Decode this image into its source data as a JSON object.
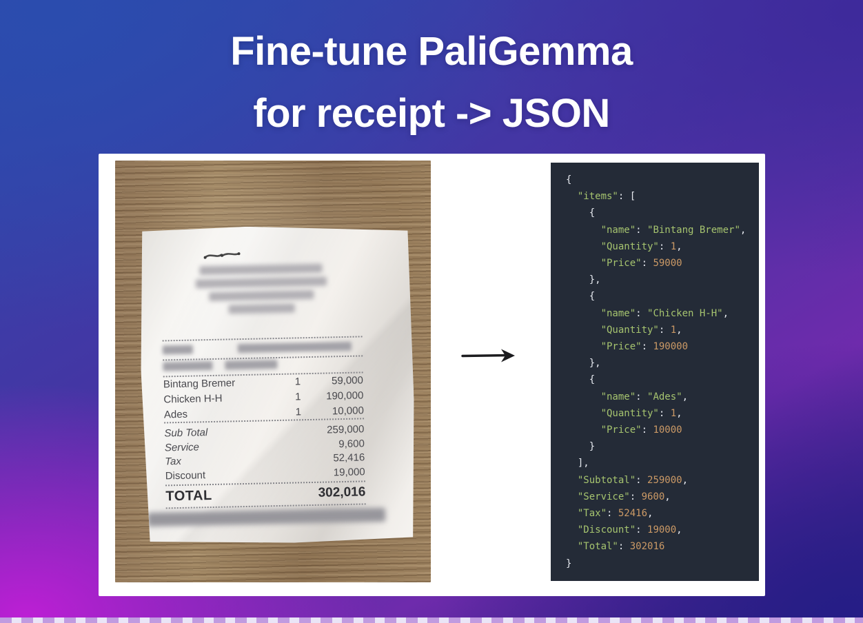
{
  "title": {
    "line1": "Fine-tune PaliGemma",
    "line2": "for receipt -> JSON"
  },
  "colors": {
    "background_top_left": "#2b4cae",
    "background_top_right": "#3e2a9b",
    "background_bottom_left": "#bc1fd4",
    "background_bottom_right": "#251d86",
    "card": "#ffffff",
    "code_background": "#242b37",
    "code_key_string": "#a6c46f",
    "code_number": "#cc9a66",
    "code_punctuation": "#e7eaf0"
  },
  "receipt": {
    "redacted_header_bar_widths": [
      178,
      190,
      152,
      96
    ],
    "redacted_info_row_a_widths": [
      44,
      165
    ],
    "redacted_info_row_b_widths": [
      72,
      76
    ],
    "items": [
      {
        "name": "Bintang Bremer",
        "qty": "1",
        "price": "59,000"
      },
      {
        "name": "Chicken H-H",
        "qty": "1",
        "price": "190,000"
      },
      {
        "name": "Ades",
        "qty": "1",
        "price": "10,000"
      }
    ],
    "summary": [
      {
        "label": "Sub Total",
        "value": "259,000",
        "italic": true
      },
      {
        "label": "Service",
        "value": "9,600",
        "italic": true
      },
      {
        "label": "Tax",
        "value": "52,416",
        "italic": true
      },
      {
        "label": "Discount",
        "value": "19,000",
        "italic": false
      }
    ],
    "total_label": "TOTAL",
    "total_value": "302,016"
  },
  "json_panel": {
    "lines": [
      [
        [
          "p",
          "{"
        ]
      ],
      [
        [
          "p",
          "  "
        ],
        [
          "k",
          "\"items\""
        ],
        [
          "p",
          ": ["
        ]
      ],
      [
        [
          "p",
          "    {"
        ]
      ],
      [
        [
          "p",
          "      "
        ],
        [
          "k",
          "\"name\""
        ],
        [
          "p",
          ": "
        ],
        [
          "s",
          "\"Bintang Bremer\""
        ],
        [
          "p",
          ","
        ]
      ],
      [
        [
          "p",
          "      "
        ],
        [
          "k",
          "\"Quantity\""
        ],
        [
          "p",
          ": "
        ],
        [
          "n",
          "1"
        ],
        [
          "p",
          ","
        ]
      ],
      [
        [
          "p",
          "      "
        ],
        [
          "k",
          "\"Price\""
        ],
        [
          "p",
          ": "
        ],
        [
          "n",
          "59000"
        ]
      ],
      [
        [
          "p",
          "    },"
        ]
      ],
      [
        [
          "p",
          "    {"
        ]
      ],
      [
        [
          "p",
          "      "
        ],
        [
          "k",
          "\"name\""
        ],
        [
          "p",
          ": "
        ],
        [
          "s",
          "\"Chicken H-H\""
        ],
        [
          "p",
          ","
        ]
      ],
      [
        [
          "p",
          "      "
        ],
        [
          "k",
          "\"Quantity\""
        ],
        [
          "p",
          ": "
        ],
        [
          "n",
          "1"
        ],
        [
          "p",
          ","
        ]
      ],
      [
        [
          "p",
          "      "
        ],
        [
          "k",
          "\"Price\""
        ],
        [
          "p",
          ": "
        ],
        [
          "n",
          "190000"
        ]
      ],
      [
        [
          "p",
          "    },"
        ]
      ],
      [
        [
          "p",
          "    {"
        ]
      ],
      [
        [
          "p",
          "      "
        ],
        [
          "k",
          "\"name\""
        ],
        [
          "p",
          ": "
        ],
        [
          "s",
          "\"Ades\""
        ],
        [
          "p",
          ","
        ]
      ],
      [
        [
          "p",
          "      "
        ],
        [
          "k",
          "\"Quantity\""
        ],
        [
          "p",
          ": "
        ],
        [
          "n",
          "1"
        ],
        [
          "p",
          ","
        ]
      ],
      [
        [
          "p",
          "      "
        ],
        [
          "k",
          "\"Price\""
        ],
        [
          "p",
          ": "
        ],
        [
          "n",
          "10000"
        ]
      ],
      [
        [
          "p",
          "    }"
        ]
      ],
      [
        [
          "p",
          "  ],"
        ]
      ],
      [
        [
          "p",
          "  "
        ],
        [
          "k",
          "\"Subtotal\""
        ],
        [
          "p",
          ": "
        ],
        [
          "n",
          "259000"
        ],
        [
          "p",
          ","
        ]
      ],
      [
        [
          "p",
          "  "
        ],
        [
          "k",
          "\"Service\""
        ],
        [
          "p",
          ": "
        ],
        [
          "n",
          "9600"
        ],
        [
          "p",
          ","
        ]
      ],
      [
        [
          "p",
          "  "
        ],
        [
          "k",
          "\"Tax\""
        ],
        [
          "p",
          ": "
        ],
        [
          "n",
          "52416"
        ],
        [
          "p",
          ","
        ]
      ],
      [
        [
          "p",
          "  "
        ],
        [
          "k",
          "\"Discount\""
        ],
        [
          "p",
          ": "
        ],
        [
          "n",
          "19000"
        ],
        [
          "p",
          ","
        ]
      ],
      [
        [
          "p",
          "  "
        ],
        [
          "k",
          "\"Total\""
        ],
        [
          "p",
          ": "
        ],
        [
          "n",
          "302016"
        ]
      ],
      [
        [
          "p",
          "}"
        ]
      ]
    ]
  }
}
